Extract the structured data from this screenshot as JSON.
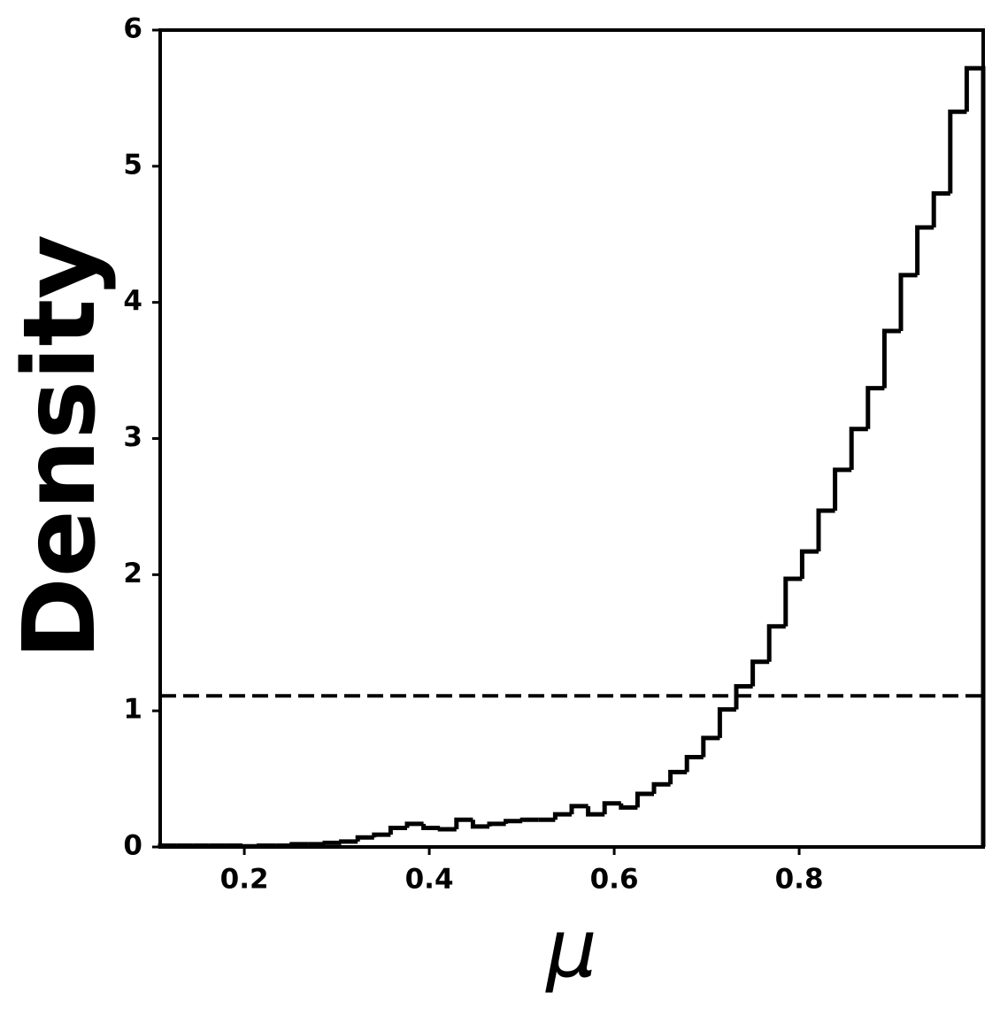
{
  "chart_data": {
    "type": "histogram",
    "xlabel": "μ",
    "ylabel": "Density",
    "bins": [
      0.109,
      0.1268,
      0.1446,
      0.1624,
      0.1802,
      0.198,
      0.2158,
      0.2336,
      0.2514,
      0.2692,
      0.287,
      0.3048,
      0.3226,
      0.3404,
      0.3582,
      0.376,
      0.3938,
      0.4116,
      0.4294,
      0.4472,
      0.465,
      0.4828,
      0.5006,
      0.5184,
      0.5362,
      0.554,
      0.5718,
      0.5896,
      0.6074,
      0.6252,
      0.643,
      0.6608,
      0.6786,
      0.6964,
      0.7142,
      0.732,
      0.7498,
      0.7676,
      0.7854,
      0.8032,
      0.821,
      0.8388,
      0.8566,
      0.8744,
      0.8922,
      0.91,
      0.9278,
      0.9456,
      0.9634,
      0.9812,
      0.999
    ],
    "values": [
      0.01,
      0.01,
      0.01,
      0.01,
      0.01,
      0.005,
      0.01,
      0.01,
      0.02,
      0.02,
      0.03,
      0.04,
      0.07,
      0.09,
      0.14,
      0.17,
      0.14,
      0.13,
      0.2,
      0.15,
      0.17,
      0.19,
      0.2,
      0.2,
      0.24,
      0.3,
      0.24,
      0.32,
      0.29,
      0.39,
      0.46,
      0.55,
      0.66,
      0.8,
      1.01,
      1.18,
      1.36,
      1.62,
      1.97,
      2.17,
      2.47,
      2.77,
      3.07,
      3.37,
      3.79,
      4.2,
      4.55,
      4.8,
      5.4,
      5.72
    ],
    "color": "#000000",
    "reference_line": 1.11,
    "xlim": [
      0.109,
      0.999
    ],
    "xticks": [
      0.2,
      0.4,
      0.6,
      0.8
    ],
    "ylim": [
      0,
      6
    ],
    "yticks": [
      0,
      1,
      2,
      3,
      4,
      5,
      6
    ],
    "grid": false
  }
}
